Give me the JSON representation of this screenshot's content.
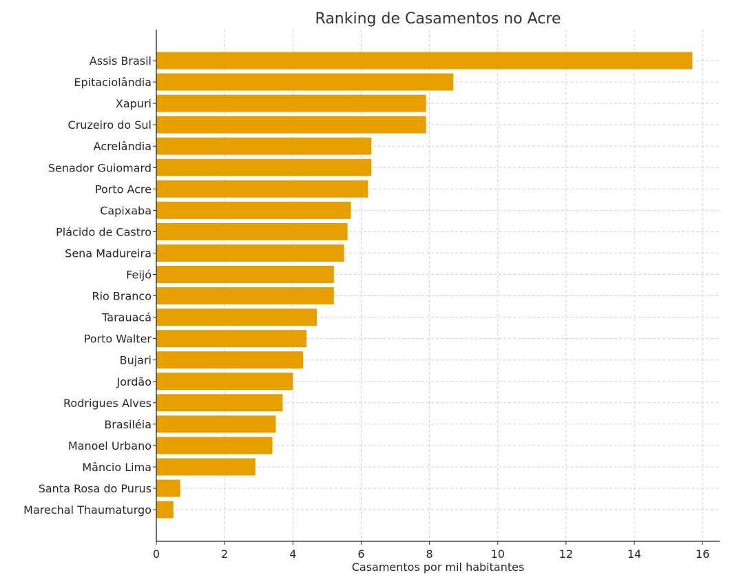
{
  "chart_data": {
    "type": "bar",
    "orientation": "horizontal",
    "title": "Ranking de Casamentos no Acre",
    "xlabel": "Casamentos por mil habitantes",
    "ylabel": "",
    "xlim": [
      0,
      16.5
    ],
    "xticks": [
      0,
      2,
      4,
      6,
      8,
      10,
      12,
      14,
      16
    ],
    "grid": true,
    "bar_color": "#E5A000",
    "categories": [
      "Assis Brasil",
      "Epitaciolândia",
      "Xapuri",
      "Cruzeiro do Sul",
      "Acrelândia",
      "Senador Guiomard",
      "Porto Acre",
      "Capixaba",
      "Plácido de Castro",
      "Sena Madureira",
      "Feijó",
      "Rio Branco",
      "Tarauacá",
      "Porto Walter",
      "Bujari",
      "Jordão",
      "Rodrigues Alves",
      "Brasiléia",
      "Manoel Urbano",
      "Mâncio Lima",
      "Santa Rosa do Purus",
      "Marechal Thaumaturgo"
    ],
    "values": [
      15.7,
      8.7,
      7.9,
      7.9,
      6.3,
      6.3,
      6.2,
      5.7,
      5.6,
      5.5,
      5.2,
      5.2,
      4.7,
      4.4,
      4.3,
      4.0,
      3.7,
      3.5,
      3.4,
      2.9,
      0.7,
      0.5
    ]
  }
}
